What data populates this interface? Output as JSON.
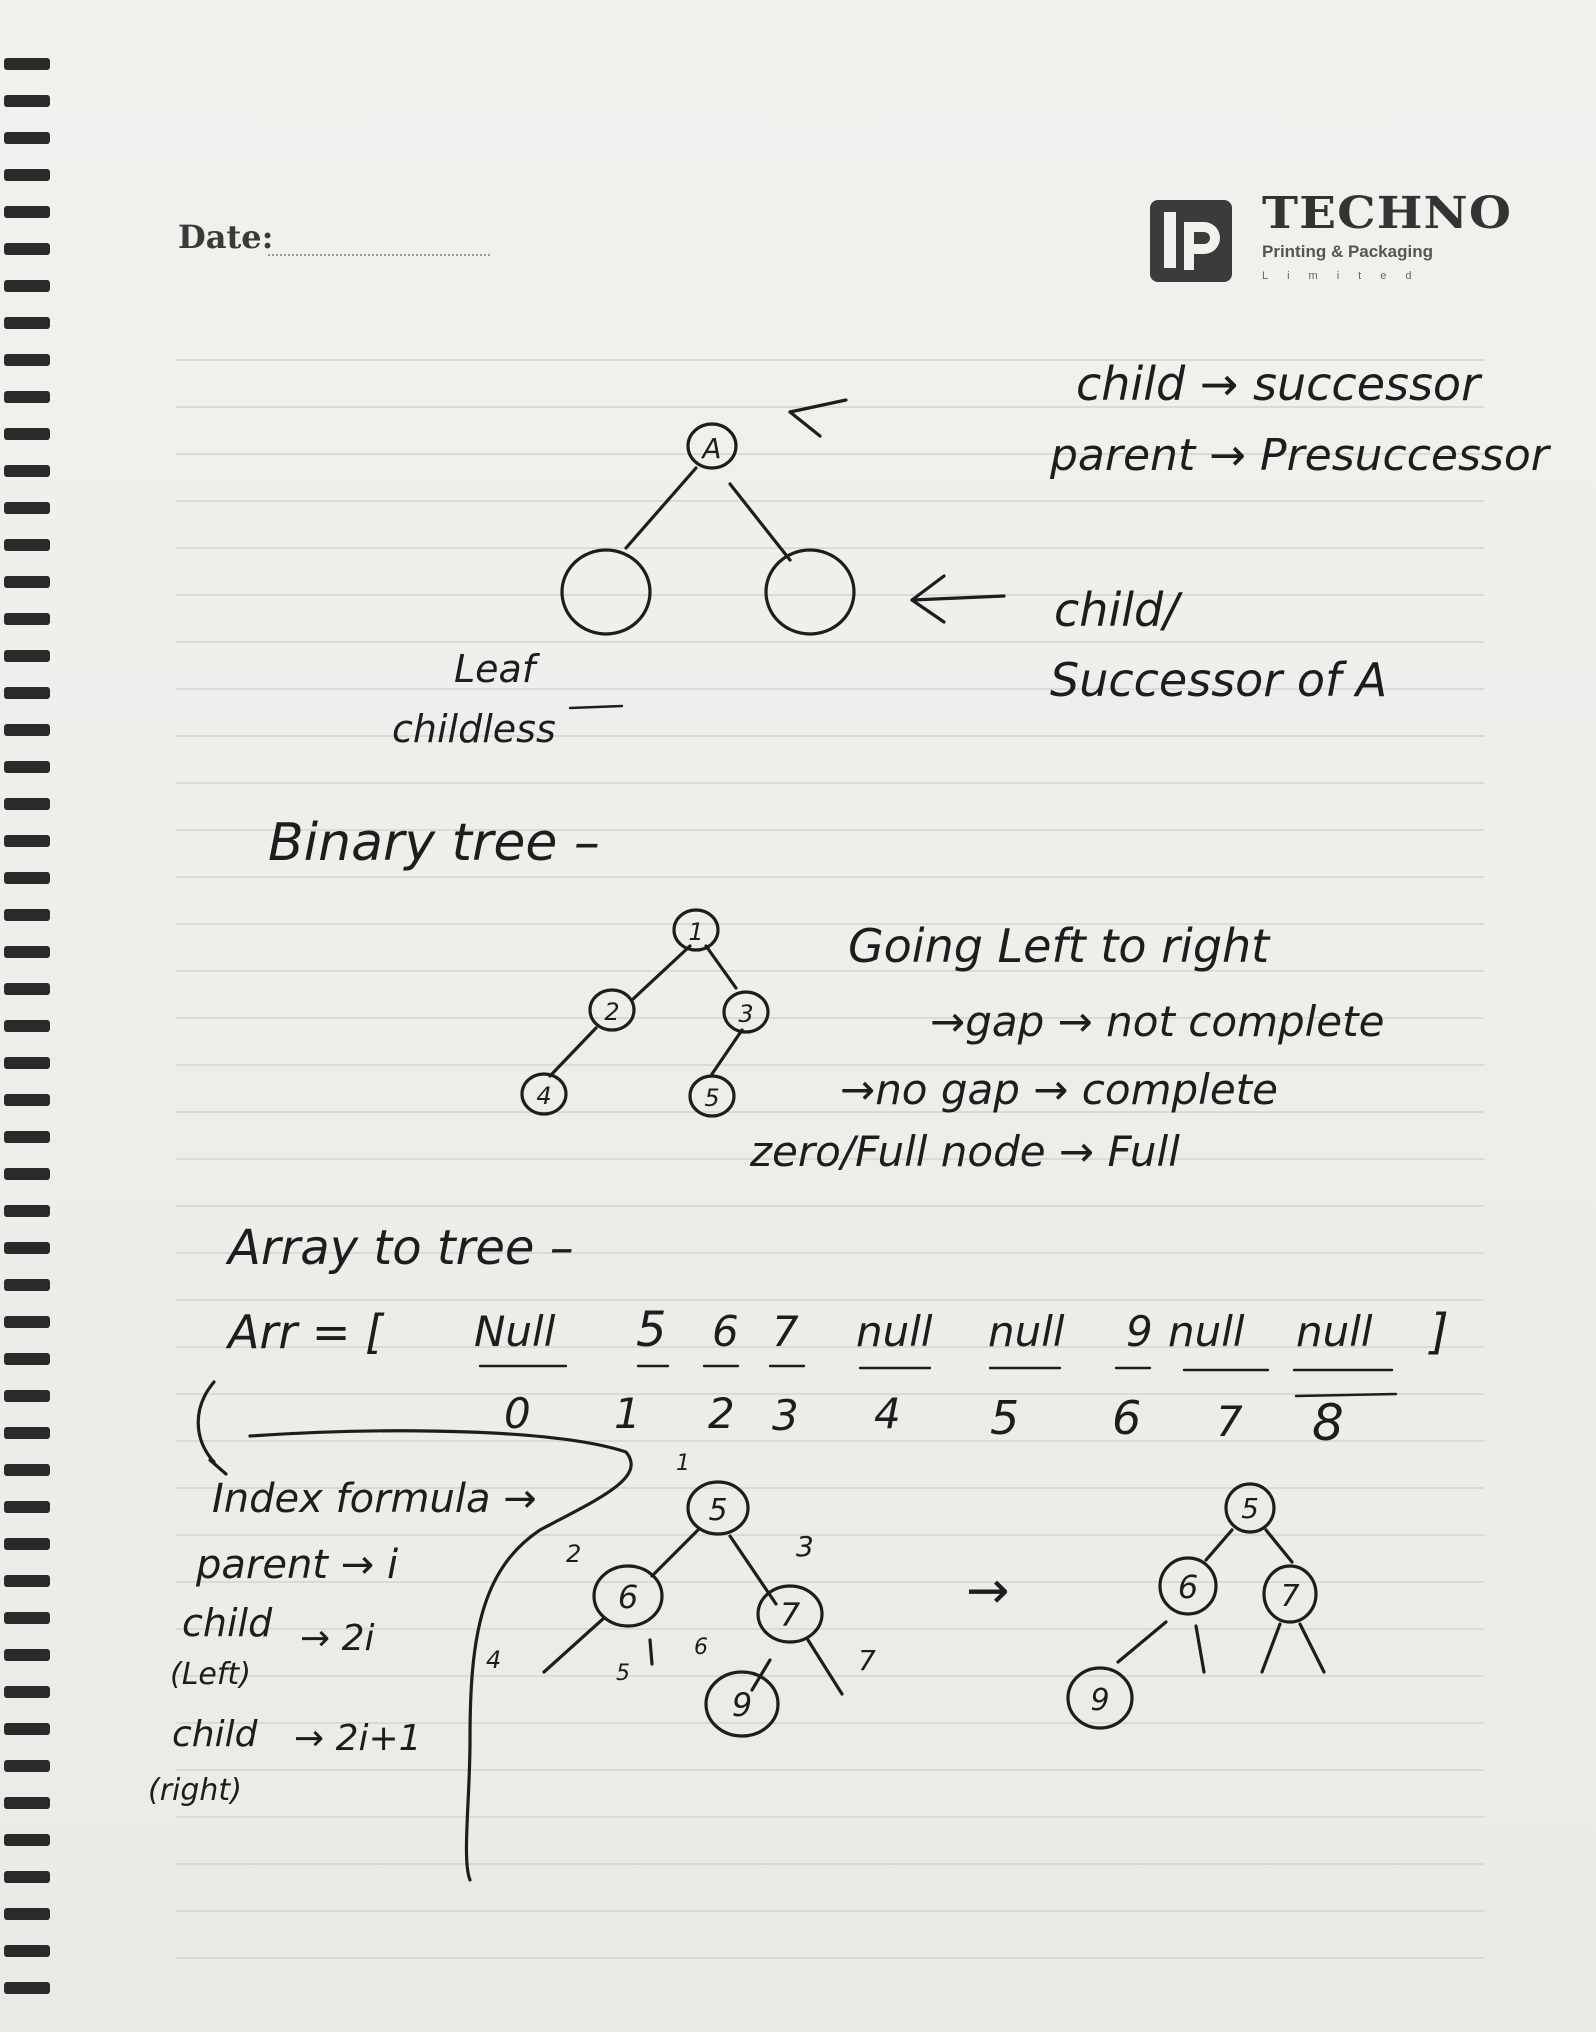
{
  "header": {
    "date_label": "Date:",
    "brand_name": "TECHNO",
    "brand_sub": "Printing & Packaging",
    "brand_ltd": "Limited"
  },
  "notes": {
    "section1": {
      "root_node": "A",
      "child_successor": "child → successor",
      "parent_predecessor": "parent → Presuccessor",
      "child_label": "child/",
      "successor_of_a": "Successor of A",
      "leaf_label": "Leaf",
      "childless_label": "childless"
    },
    "section2": {
      "title": "Binary tree –",
      "nodes": [
        "1",
        "2",
        "3",
        "4",
        "5"
      ],
      "rule1": "Going Left to right",
      "rule2": "→gap → not complete",
      "rule3": "→no gap → complete",
      "rule4": "zero/Full node → Full"
    },
    "section3": {
      "title": "Array to tree –",
      "array_prefix": "Arr = [",
      "array_values": [
        "Null",
        "5",
        "6",
        "7",
        "null",
        "null",
        "9",
        "null",
        "null"
      ],
      "array_suffix": "]",
      "array_indices": [
        "0",
        "1",
        "2",
        "3",
        "4",
        "5",
        "6",
        "7",
        "8"
      ],
      "formula_title": "Index formula →",
      "parent_rule": "parent → i",
      "child_word": "child",
      "child_left_rule": "→ 2i",
      "left_label": "(Left)",
      "child_right_rule": "→ 2i+1",
      "right_label": "(right)",
      "tree_nodes": [
        "5",
        "6",
        "7",
        "9"
      ],
      "tree_index_labels": [
        "1",
        "2",
        "3",
        "4",
        "5",
        "6",
        "7"
      ],
      "arrow": "→",
      "result_nodes": [
        "5",
        "6",
        "7",
        "9"
      ]
    }
  }
}
